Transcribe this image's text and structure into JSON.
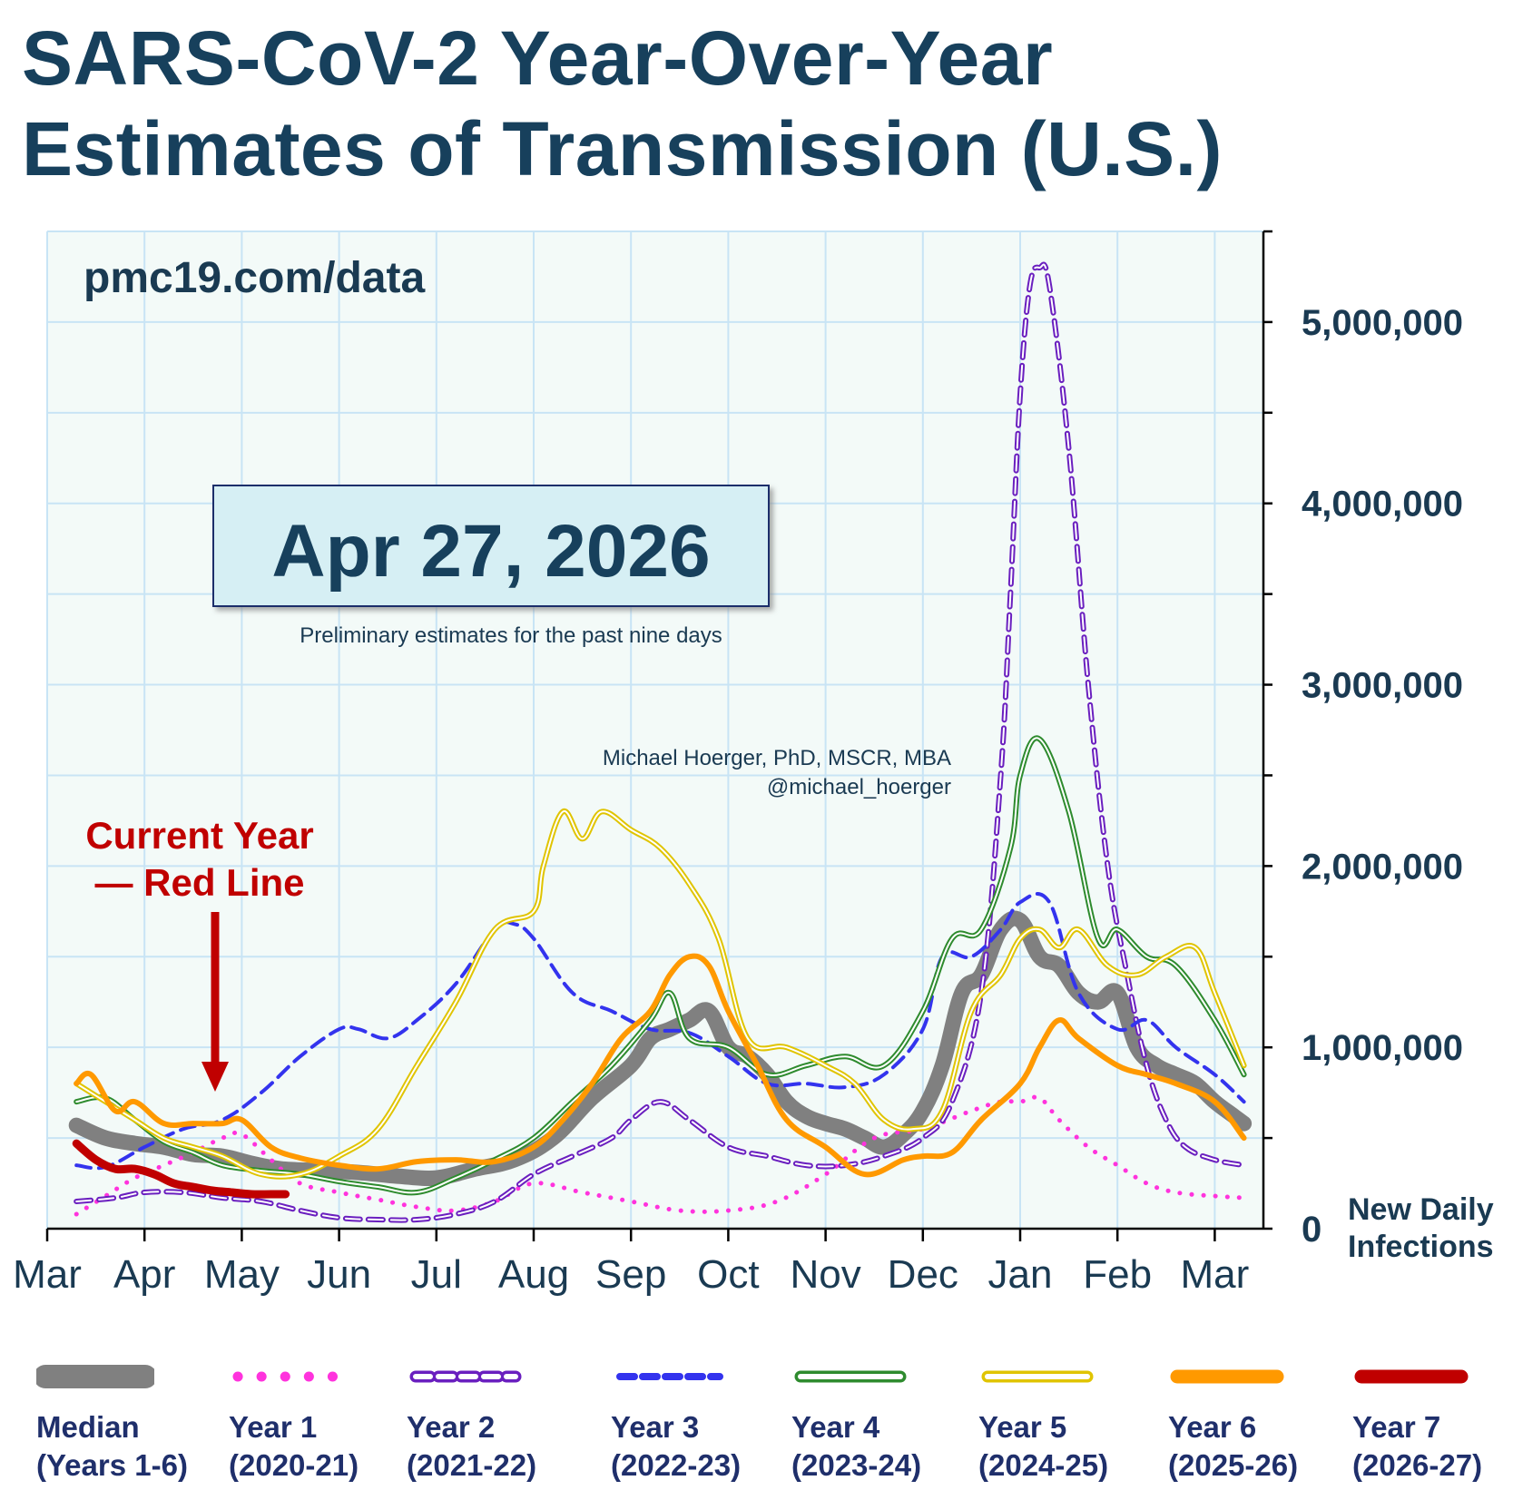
{
  "title_line1": "SARS-CoV-2 Year-Over-Year",
  "title_line2": "Estimates of Transmission (U.S.)",
  "watermark": "pmc19.com/data",
  "date_box": "Apr 27, 2026",
  "date_note": "Preliminary estimates for the past nine days",
  "author_line1": "Michael Hoerger, PhD, MSCR, MBA",
  "author_line2": "@michael_hoerger",
  "callout_line1": "Current Year",
  "callout_line2": "— Red Line",
  "colors": {
    "title": "#17405c",
    "plot_bg": "#f3faf8",
    "grid": "#c8e4f5",
    "callout": "#c00000",
    "legend_text": "#1f2f6b"
  },
  "chart_data": {
    "type": "line",
    "x_tick_labels": [
      "Mar",
      "Apr",
      "May",
      "Jun",
      "Jul",
      "Aug",
      "Sep",
      "Oct",
      "Nov",
      "Dec",
      "Jan",
      "Feb",
      "Mar"
    ],
    "x_unit": "months since March 1",
    "xlim": [
      0,
      12.5
    ],
    "ylim": [
      0,
      5500000
    ],
    "y_ticks": [
      0,
      1000000,
      2000000,
      3000000,
      4000000,
      5000000
    ],
    "y_tick_labels": [
      "0",
      "1,000,000",
      "2,000,000",
      "3,000,000",
      "4,000,000",
      "5,000,000"
    ],
    "ylabel": "New Daily\nInfections",
    "y_axis_side": "right",
    "grid": true,
    "legend_position": "bottom",
    "series": [
      {
        "name": "Median",
        "name2": "(Years 1-6)",
        "style": "median",
        "color": "#808080",
        "x": [
          0.3,
          0.6,
          0.9,
          1.2,
          1.5,
          1.8,
          2.1,
          2.4,
          2.8,
          3.2,
          3.6,
          4.0,
          4.4,
          4.8,
          5.2,
          5.6,
          6.0,
          6.2,
          6.4,
          6.6,
          6.8,
          7.0,
          7.2,
          7.4,
          7.6,
          7.8,
          8.0,
          8.2,
          8.4,
          8.6,
          8.8,
          9.0,
          9.2,
          9.4,
          9.6,
          9.8,
          10.0,
          10.2,
          10.4,
          10.6,
          10.8,
          11.0,
          11.2,
          11.4,
          11.6,
          11.8,
          12.0,
          12.2,
          12.3
        ],
        "y": [
          570000,
          500000,
          470000,
          450000,
          410000,
          400000,
          360000,
          330000,
          320000,
          310000,
          290000,
          280000,
          330000,
          380000,
          500000,
          720000,
          900000,
          1050000,
          1100000,
          1150000,
          1200000,
          1000000,
          950000,
          850000,
          700000,
          620000,
          580000,
          550000,
          500000,
          450000,
          520000,
          650000,
          900000,
          1300000,
          1400000,
          1650000,
          1700000,
          1500000,
          1450000,
          1300000,
          1250000,
          1300000,
          1000000,
          900000,
          850000,
          800000,
          700000,
          620000,
          580000
        ]
      },
      {
        "name": "Year 1",
        "name2": "(2020-21)",
        "style": "dotted",
        "color": "#ff33dd",
        "x": [
          0.3,
          0.6,
          0.9,
          1.2,
          1.5,
          1.8,
          2.0,
          2.3,
          2.6,
          3.0,
          3.4,
          3.8,
          4.2,
          4.6,
          5.0,
          5.5,
          6.0,
          6.5,
          7.0,
          7.5,
          8.0,
          8.5,
          9.0,
          9.5,
          9.8,
          10.0,
          10.2,
          10.4,
          10.7,
          11.0,
          11.3,
          11.6,
          12.0,
          12.3
        ],
        "y": [
          80000,
          180000,
          280000,
          350000,
          420000,
          500000,
          520000,
          380000,
          250000,
          200000,
          160000,
          120000,
          100000,
          150000,
          250000,
          200000,
          150000,
          100000,
          100000,
          150000,
          300000,
          500000,
          550000,
          650000,
          700000,
          700000,
          720000,
          600000,
          450000,
          350000,
          250000,
          200000,
          180000,
          170000
        ]
      },
      {
        "name": "Year 2",
        "name2": "(2021-22)",
        "style": "hollow-dash",
        "color": "#6a1fbf",
        "x": [
          0.3,
          0.7,
          1.0,
          1.4,
          1.8,
          2.2,
          2.6,
          3.0,
          3.4,
          3.8,
          4.2,
          4.6,
          5.0,
          5.4,
          5.8,
          6.0,
          6.3,
          6.6,
          7.0,
          7.4,
          7.8,
          8.2,
          8.6,
          9.0,
          9.3,
          9.6,
          9.8,
          9.9,
          10.0,
          10.1,
          10.2,
          10.3,
          10.5,
          10.7,
          10.9,
          11.1,
          11.3,
          11.5,
          11.7,
          12.0,
          12.3
        ],
        "y": [
          150000,
          170000,
          200000,
          200000,
          170000,
          150000,
          100000,
          60000,
          50000,
          50000,
          80000,
          150000,
          300000,
          400000,
          500000,
          600000,
          700000,
          600000,
          450000,
          400000,
          350000,
          350000,
          400000,
          500000,
          700000,
          1300000,
          2500000,
          3500000,
          4600000,
          5200000,
          5300000,
          5200000,
          4300000,
          3000000,
          2000000,
          1400000,
          900000,
          600000,
          450000,
          380000,
          350000
        ]
      },
      {
        "name": "Year 3",
        "name2": "(2022-23)",
        "style": "dashed",
        "color": "#3333ee",
        "x": [
          0.3,
          0.6,
          1.0,
          1.4,
          1.8,
          2.2,
          2.6,
          3.0,
          3.2,
          3.5,
          3.8,
          4.2,
          4.6,
          4.8,
          5.0,
          5.4,
          5.8,
          6.2,
          6.6,
          7.0,
          7.4,
          7.8,
          8.2,
          8.6,
          9.0,
          9.2,
          9.5,
          9.8,
          10.0,
          10.3,
          10.6,
          11.0,
          11.3,
          11.6,
          12.0,
          12.3
        ],
        "y": [
          350000,
          340000,
          450000,
          550000,
          600000,
          750000,
          950000,
          1100000,
          1100000,
          1050000,
          1150000,
          1350000,
          1650000,
          1680000,
          1600000,
          1300000,
          1200000,
          1100000,
          1080000,
          950000,
          800000,
          800000,
          780000,
          850000,
          1100000,
          1500000,
          1500000,
          1650000,
          1800000,
          1800000,
          1300000,
          1100000,
          1150000,
          1000000,
          850000,
          700000
        ]
      },
      {
        "name": "Year 4",
        "name2": "(2023-24)",
        "style": "hollow",
        "color": "#2e8b2e",
        "x": [
          0.3,
          0.6,
          0.9,
          1.2,
          1.5,
          1.8,
          2.2,
          2.6,
          3.0,
          3.4,
          3.8,
          4.2,
          4.6,
          5.0,
          5.4,
          5.8,
          6.2,
          6.4,
          6.6,
          7.0,
          7.4,
          7.8,
          8.2,
          8.6,
          9.0,
          9.3,
          9.6,
          9.9,
          10.0,
          10.2,
          10.5,
          10.8,
          11.0,
          11.3,
          11.6,
          12.0,
          12.3
        ],
        "y": [
          700000,
          720000,
          600000,
          480000,
          420000,
          350000,
          320000,
          300000,
          260000,
          230000,
          200000,
          280000,
          380000,
          500000,
          700000,
          900000,
          1150000,
          1300000,
          1050000,
          1000000,
          850000,
          900000,
          950000,
          900000,
          1200000,
          1600000,
          1650000,
          2100000,
          2500000,
          2700000,
          2300000,
          1600000,
          1650000,
          1500000,
          1450000,
          1150000,
          850000
        ]
      },
      {
        "name": "Year 5",
        "name2": "(2024-25)",
        "style": "hollow",
        "color": "#e0c400",
        "x": [
          0.3,
          0.6,
          0.9,
          1.2,
          1.5,
          1.8,
          2.2,
          2.6,
          3.0,
          3.4,
          3.8,
          4.2,
          4.6,
          5.0,
          5.1,
          5.3,
          5.5,
          5.7,
          6.0,
          6.3,
          6.6,
          6.9,
          7.2,
          7.6,
          8.0,
          8.3,
          8.6,
          8.9,
          9.2,
          9.5,
          9.8,
          10.0,
          10.2,
          10.4,
          10.6,
          10.9,
          11.2,
          11.5,
          11.8,
          12.0,
          12.3
        ],
        "y": [
          800000,
          700000,
          600000,
          500000,
          450000,
          400000,
          300000,
          300000,
          400000,
          550000,
          900000,
          1250000,
          1650000,
          1750000,
          2000000,
          2300000,
          2150000,
          2300000,
          2200000,
          2100000,
          1900000,
          1600000,
          1050000,
          1000000,
          900000,
          800000,
          600000,
          550000,
          650000,
          1200000,
          1400000,
          1600000,
          1650000,
          1550000,
          1650000,
          1450000,
          1400000,
          1500000,
          1550000,
          1300000,
          900000
        ]
      },
      {
        "name": "Year 6",
        "name2": "(2025-26)",
        "style": "solid",
        "color": "#ff9900",
        "x": [
          0.3,
          0.45,
          0.7,
          0.9,
          1.2,
          1.5,
          1.8,
          2.0,
          2.3,
          2.6,
          3.0,
          3.4,
          3.8,
          4.2,
          4.6,
          5.0,
          5.3,
          5.6,
          5.9,
          6.2,
          6.4,
          6.6,
          6.8,
          7.0,
          7.3,
          7.6,
          8.0,
          8.4,
          8.8,
          9.0,
          9.3,
          9.6,
          10.0,
          10.2,
          10.4,
          10.6,
          11.0,
          11.3,
          11.6,
          12.0,
          12.3
        ],
        "y": [
          800000,
          850000,
          650000,
          700000,
          580000,
          580000,
          580000,
          600000,
          450000,
          390000,
          350000,
          330000,
          370000,
          380000,
          370000,
          450000,
          600000,
          800000,
          1050000,
          1200000,
          1400000,
          1500000,
          1450000,
          1200000,
          900000,
          600000,
          450000,
          300000,
          380000,
          400000,
          420000,
          600000,
          800000,
          1000000,
          1150000,
          1050000,
          900000,
          850000,
          800000,
          700000,
          500000
        ]
      },
      {
        "name": "Year 7",
        "name2": "(2026-27)",
        "style": "current",
        "color": "#c00000",
        "x": [
          0.3,
          0.5,
          0.7,
          0.9,
          1.1,
          1.3,
          1.5,
          1.7,
          1.9,
          2.1,
          2.3,
          2.45
        ],
        "y": [
          470000,
          380000,
          330000,
          330000,
          300000,
          250000,
          230000,
          210000,
          200000,
          190000,
          190000,
          190000
        ]
      }
    ]
  }
}
